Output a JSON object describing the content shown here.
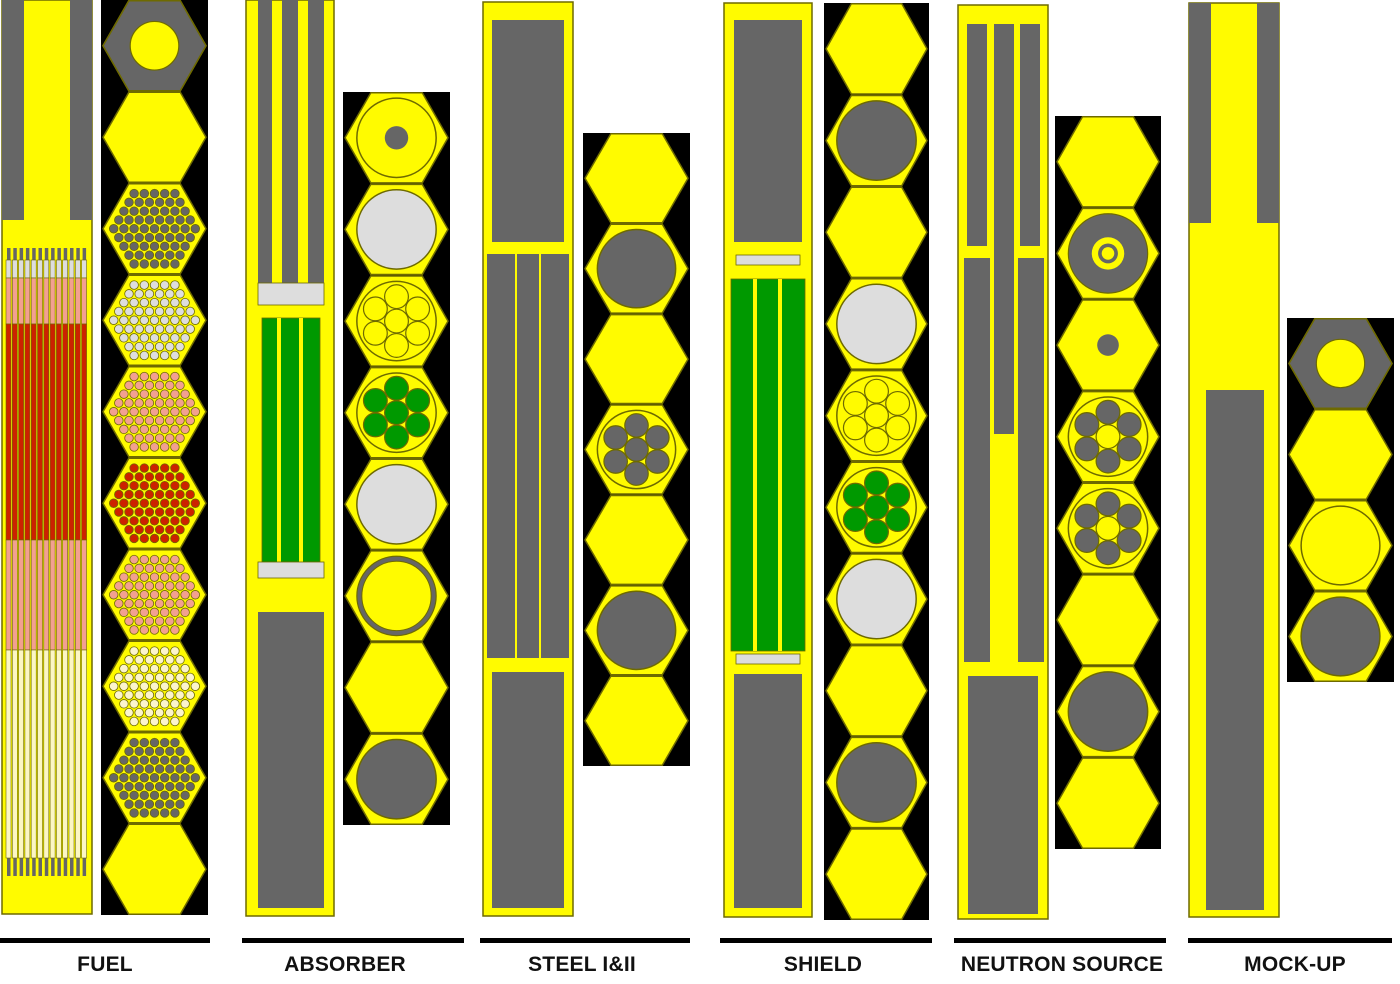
{
  "title": "",
  "colors": {
    "structure": "#fffb00",
    "outline": "#6e6a00",
    "background": "#000000",
    "steel": "#666666",
    "absorber": "#009900",
    "light_gray": "#dddddd",
    "fuel_pink": "#f2a090",
    "fuel_red": "#cc2200",
    "fuel_cream": "#fcf6c4",
    "cream_pins": "#fbf4cc",
    "rule": "#000000"
  },
  "assemblies": [
    {
      "id": "fuel",
      "label": "FUEL",
      "hex_column": [
        "hex-nut",
        "hex-plain",
        "hex-pins-dark",
        "hex-pins-light",
        "hex-pins-pink",
        "hex-pins-red",
        "hex-pins-pink",
        "hex-pins-cream",
        "hex-pins-dark",
        "hex-plain"
      ]
    },
    {
      "id": "absorber",
      "label": "ABSORBER",
      "hex_column": [
        "hex-ring",
        "hex-gray-circle",
        "hex-rods-yellow",
        "hex-rods-green",
        "hex-gray-circle",
        "hex-tube",
        "hex-plain",
        "hex-steel-circle"
      ]
    },
    {
      "id": "steel",
      "label": "STEEL I&II",
      "hex_column": [
        "hex-plain",
        "hex-steel-circle",
        "hex-plain",
        "hex-rods-steel",
        "hex-plain",
        "hex-steel-circle",
        "hex-plain"
      ]
    },
    {
      "id": "shield",
      "label": "SHIELD",
      "hex_column": [
        "hex-plain",
        "hex-steel-circle",
        "hex-plain",
        "hex-gray-circle",
        "hex-rods-yellow",
        "hex-rods-green",
        "hex-gray-circle",
        "hex-plain",
        "hex-steel-circle",
        "hex-plain"
      ]
    },
    {
      "id": "neutron-source",
      "label": "NEUTRON SOURCE",
      "hex_column": [
        "hex-plain",
        "hex-donut",
        "hex-dot",
        "hex-rods-steel-center",
        "hex-rods-steel-center",
        "hex-plain",
        "hex-steel-circle",
        "hex-plain"
      ]
    },
    {
      "id": "mock-up",
      "label": "MOCK-UP",
      "hex_column": [
        "hex-nut",
        "hex-plain",
        "hex-open-circle",
        "hex-steel-circle"
      ]
    }
  ]
}
